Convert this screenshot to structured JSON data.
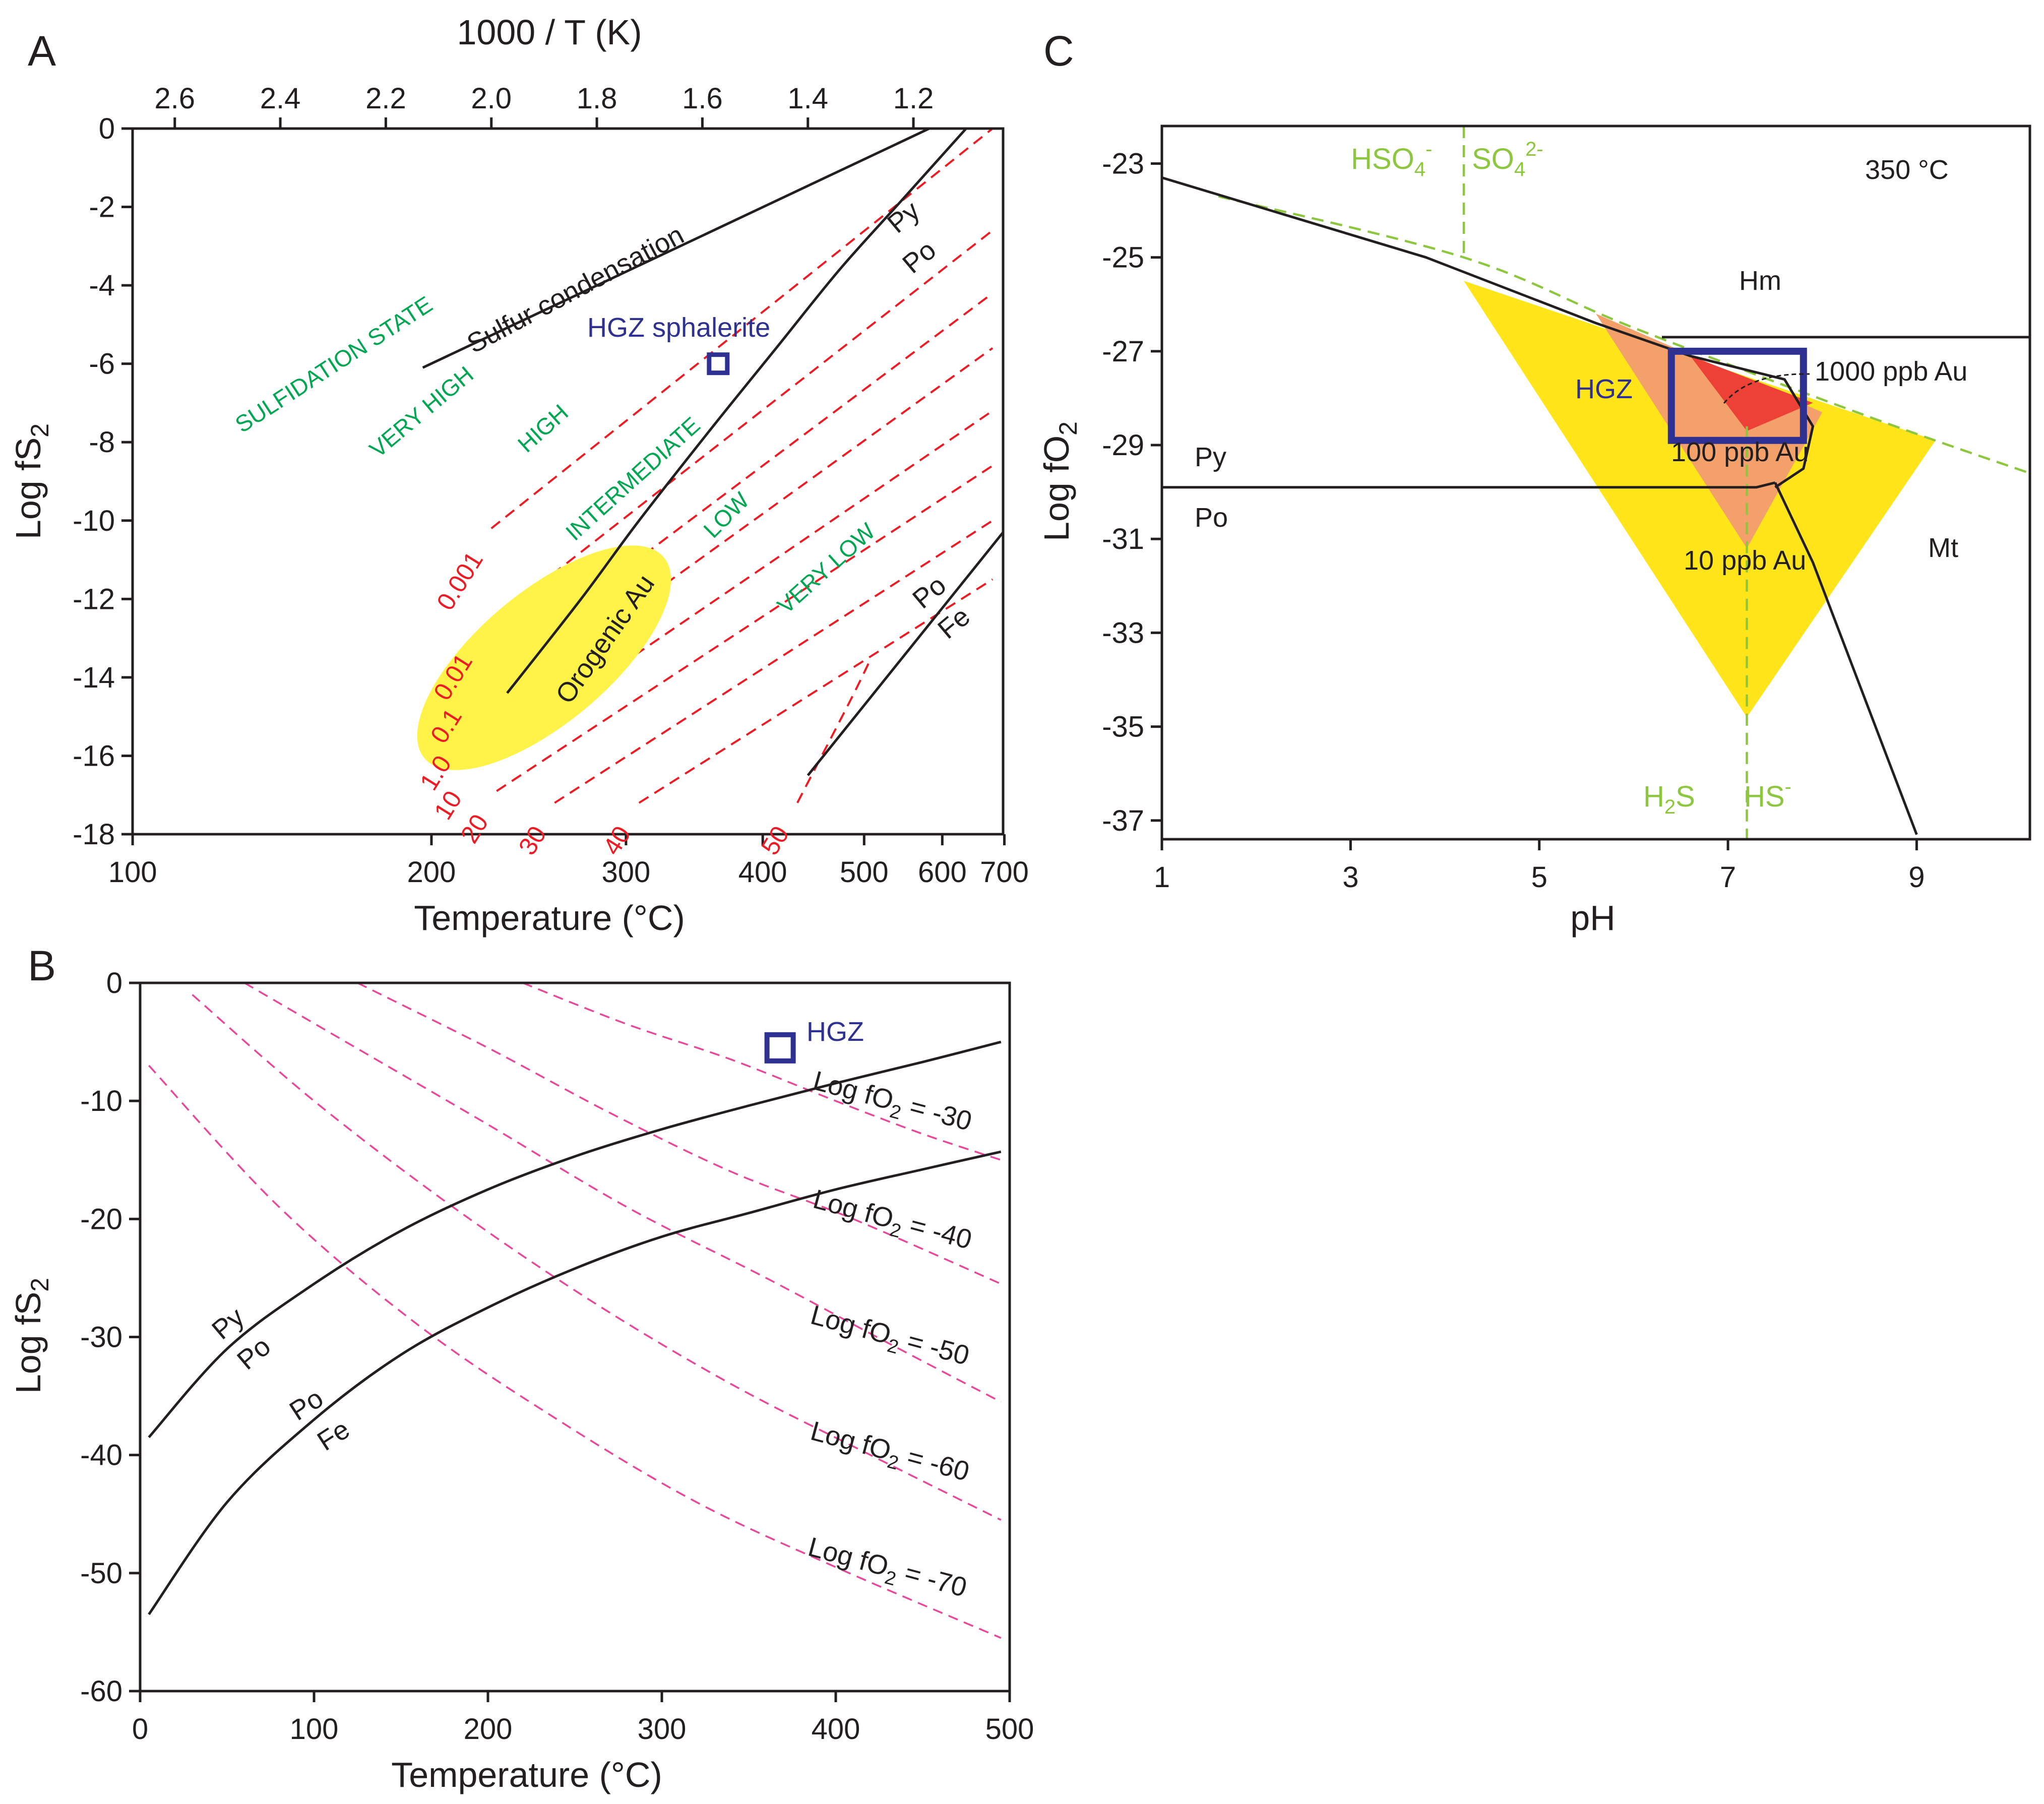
{
  "panel_labels": {
    "a": "A",
    "b": "B",
    "c": "C"
  },
  "chart_data": [
    {
      "type": "line",
      "panel": "A",
      "title": "",
      "xlabel": "Temperature (°C)",
      "x2label": "1000 / T (K)",
      "ylabel": "Log fS",
      "ylabel_sub": "2",
      "x_ticks": [
        "100",
        "200",
        "300",
        "400",
        "500",
        "600",
        "700"
      ],
      "x2_ticks": [
        "2.6",
        "2.4",
        "2.2",
        "2.0",
        "1.8",
        "1.6",
        "1.4",
        "1.2"
      ],
      "y_ticks": [
        "0",
        "-2",
        "-4",
        "-6",
        "-8",
        "-10",
        "-12",
        "-14",
        "-16",
        "-18"
      ],
      "ylim": [
        -18,
        0
      ],
      "x2lim": [
        2.68,
        1.03
      ],
      "series": [
        {
          "name": "Sulfur condensation",
          "points": [
            [
              2.13,
              -6.1
            ],
            [
              1.17,
              0
            ]
          ]
        },
        {
          "name": "Py/Po",
          "points": [
            [
              1.97,
              -14.4
            ],
            [
              1.83,
              -12.0
            ],
            [
              1.72,
              -10.0
            ],
            [
              1.58,
              -7.6
            ],
            [
              1.46,
              -5.6
            ],
            [
              1.34,
              -3.6
            ],
            [
              1.22,
              -1.8
            ],
            [
              1.1,
              0
            ]
          ]
        },
        {
          "name": "Po/Fe",
          "points": [
            [
              1.4,
              -16.5
            ],
            [
              1.03,
              -10.3
            ]
          ]
        }
      ],
      "sulfidation_isopleths": [
        {
          "label": "0.001",
          "points": [
            [
              2.0,
              -10.2
            ],
            [
              1.05,
              0
            ]
          ]
        },
        {
          "label": "0.01",
          "points": [
            [
              2.02,
              -12.8
            ],
            [
              1.05,
              -2.6
            ]
          ]
        },
        {
          "label": "0.1",
          "points": [
            [
              2.04,
              -14.2
            ],
            [
              1.05,
              -4.2
            ]
          ]
        },
        {
          "label": "1.0",
          "points": [
            [
              2.06,
              -15.4
            ],
            [
              1.05,
              -5.6
            ]
          ]
        },
        {
          "label": "10",
          "points": [
            [
              2.04,
              -16.3
            ],
            [
              1.05,
              -7.2
            ]
          ]
        },
        {
          "label": "20",
          "points": [
            [
              1.99,
              -16.9
            ],
            [
              1.05,
              -8.6
            ]
          ]
        },
        {
          "label": "30",
          "points": [
            [
              1.88,
              -17.2
            ],
            [
              1.05,
              -10.0
            ]
          ]
        },
        {
          "label": "40",
          "points": [
            [
              1.72,
              -17.2
            ],
            [
              1.05,
              -11.5
            ]
          ]
        },
        {
          "label": "50",
          "points": [
            [
              1.42,
              -17.2
            ],
            [
              1.32,
              -14.6
            ],
            [
              1.28,
              -13.5
            ]
          ]
        }
      ],
      "sulfidation_state_labels": [
        "SULFIDATION STATE",
        "VERY HIGH",
        "HIGH",
        "INTERMEDIATE",
        "LOW",
        "VERY LOW"
      ],
      "field_labels": {
        "py": "Py",
        "po1": "Po",
        "po2": "Po",
        "fe": "Fe",
        "condensation": "Sulfur condensation",
        "orogenic": "Orogenic Au"
      },
      "marker": {
        "label": "HGZ sphalerite",
        "x2": 1.57,
        "y": -6
      }
    },
    {
      "type": "line",
      "panel": "B",
      "xlabel": "Temperature (°C)",
      "ylabel": "Log fS",
      "ylabel_sub": "2",
      "x_ticks": [
        "0",
        "100",
        "200",
        "300",
        "400",
        "500"
      ],
      "y_ticks": [
        "0",
        "-10",
        "-20",
        "-30",
        "-40",
        "-50",
        "-60"
      ],
      "xlim": [
        0,
        500
      ],
      "ylim": [
        -60,
        0
      ],
      "series": [
        {
          "name": "Py/Po",
          "x": [
            5,
            50,
            100,
            150,
            200,
            250,
            300,
            350,
            400,
            450,
            495
          ],
          "y": [
            -38.5,
            -31.0,
            -25.5,
            -21.0,
            -17.5,
            -14.7,
            -12.4,
            -10.4,
            -8.5,
            -6.7,
            -5.0
          ]
        },
        {
          "name": "Po/Fe",
          "x": [
            5,
            50,
            100,
            150,
            200,
            250,
            300,
            350,
            400,
            450,
            495
          ],
          "y": [
            -53.5,
            -44.0,
            -37.0,
            -31.5,
            -27.5,
            -24.2,
            -21.5,
            -19.5,
            -17.5,
            -15.8,
            -14.3
          ]
        }
      ],
      "fo2_isobars": [
        {
          "label": "-30",
          "x": [
            220,
            280,
            340,
            400,
            450,
            495
          ],
          "y": [
            0,
            -3.5,
            -6.5,
            -10.0,
            -12.8,
            -15.0
          ]
        },
        {
          "label": "-40",
          "x": [
            125,
            200,
            270,
            340,
            410,
            495
          ],
          "y": [
            0,
            -5.5,
            -11.0,
            -16.0,
            -20.0,
            -25.5
          ]
        },
        {
          "label": "-50",
          "x": [
            60,
            130,
            200,
            280,
            360,
            430,
            495
          ],
          "y": [
            0,
            -6.0,
            -12.0,
            -19.0,
            -25.0,
            -30.5,
            -35.5
          ]
        },
        {
          "label": "-60",
          "x": [
            30,
            100,
            180,
            260,
            340,
            420,
            495
          ],
          "y": [
            -1.0,
            -10.0,
            -19.0,
            -27.0,
            -34.0,
            -40.0,
            -45.5
          ]
        },
        {
          "label": "-70",
          "x": [
            5,
            80,
            160,
            240,
            320,
            400,
            495
          ],
          "y": [
            -7.0,
            -19.0,
            -29.0,
            -37.0,
            -44.0,
            -49.5,
            -55.5
          ]
        }
      ],
      "fo2_prefix": "Log fO",
      "fo2_sub": "2",
      "fo2_eq": " = ",
      "field_labels": {
        "py": "Py",
        "po1": "Po",
        "po2": "Po",
        "fe": "Fe"
      },
      "marker": {
        "label": "HGZ",
        "x": 368,
        "y": -5.5
      }
    },
    {
      "type": "area",
      "panel": "C",
      "title": "350 °C",
      "xlabel": "pH",
      "ylabel": "Log fO",
      "ylabel_sub": "2",
      "x_ticks": [
        "1",
        "3",
        "5",
        "7",
        "9"
      ],
      "y_ticks": [
        "-23",
        "-25",
        "-27",
        "-29",
        "-31",
        "-33",
        "-35",
        "-37"
      ],
      "xlim": [
        1,
        10.2
      ],
      "ylim": [
        -37.4,
        -22.2
      ],
      "boundaries": [
        {
          "name": "Py/Hm/Mt upper",
          "points": [
            [
              1,
              -23.3
            ],
            [
              3.8,
              -25.0
            ],
            [
              5.6,
              -26.4
            ],
            [
              6.6,
              -27.1
            ],
            [
              7.6,
              -27.6
            ],
            [
              7.9,
              -28.6
            ],
            [
              7.8,
              -29.5
            ],
            [
              7.5,
              -29.9
            ]
          ]
        },
        {
          "name": "Py/Po",
          "points": [
            [
              1,
              -29.9
            ],
            [
              7.3,
              -29.9
            ],
            [
              7.5,
              -29.8
            ]
          ]
        },
        {
          "name": "Hm/Mt",
          "points": [
            [
              6.3,
              -26.7
            ],
            [
              10.2,
              -26.7
            ]
          ]
        },
        {
          "name": "Py/Mt/Po",
          "points": [
            [
              7.5,
              -29.8
            ],
            [
              7.9,
              -31.5
            ],
            [
              9.0,
              -37.3
            ]
          ]
        }
      ],
      "sulfur_species_boundaries": [
        {
          "name": "sulfate-sulfide",
          "points": [
            [
              1.6,
              -23.7
            ],
            [
              4.2,
              -25.0
            ],
            [
              6.0,
              -26.5
            ],
            [
              8.5,
              -28.4
            ],
            [
              10.2,
              -29.6
            ]
          ]
        },
        {
          "name": "HSO4/SO4",
          "points": [
            [
              4.2,
              -22.2
            ],
            [
              4.2,
              -25.0
            ]
          ]
        },
        {
          "name": "H2S/HS",
          "points": [
            [
              7.2,
              -28.6
            ],
            [
              7.2,
              -37.4
            ]
          ]
        }
      ],
      "gold_solubility_fields": [
        {
          "label": "10 ppb Au",
          "points": [
            [
              4.2,
              -25.5
            ],
            [
              9.2,
              -28.9
            ],
            [
              7.2,
              -34.8
            ]
          ]
        },
        {
          "label": "100 ppb Au",
          "points": [
            [
              5.6,
              -26.2
            ],
            [
              8.0,
              -28.3
            ],
            [
              7.2,
              -31.2
            ]
          ]
        },
        {
          "label": "1000 ppb Au",
          "points": [
            [
              6.6,
              -27.1
            ],
            [
              7.9,
              -28.1
            ],
            [
              7.2,
              -28.7
            ]
          ]
        }
      ],
      "box": {
        "label": "HGZ",
        "x": [
          6.4,
          7.8
        ],
        "y": [
          -27.0,
          -28.9
        ]
      },
      "field_labels": {
        "hm": "Hm",
        "mt": "Mt",
        "py": "Py",
        "po": "Po"
      },
      "species_labels": {
        "hso4": "HSO",
        "hso4_sub": "4",
        "hso4_sup": "-",
        "so4": "SO",
        "so4_sub": "4",
        "so4_sup": "2-",
        "h2s_h": "H",
        "h2s_sub": "2",
        "h2s_s": "S",
        "hs": "HS",
        "hs_sup": "-"
      }
    }
  ],
  "colors": {
    "line": "#231f20",
    "red_isopleth": "#ed1c24",
    "green_text": "#00a651",
    "pink_isobar": "#e8489a",
    "light_green": "#8dc63f",
    "yellow": "#ffe51a",
    "orogenic_yellow": "#fff34a",
    "orange": "#f4a06a",
    "red_fill": "#ed4138",
    "hgz_blue": "#2e3192"
  }
}
